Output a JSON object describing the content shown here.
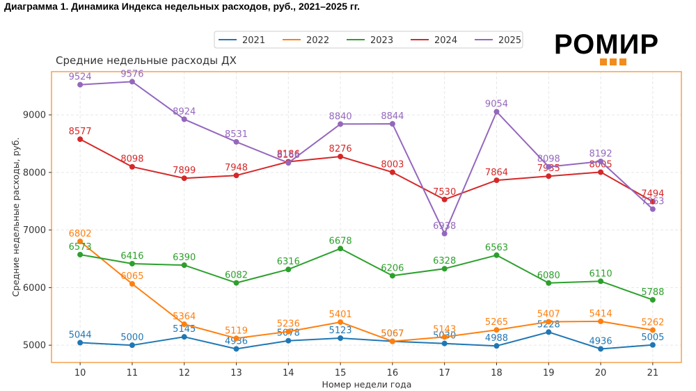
{
  "page": {
    "heading": "Диаграмма 1. Динамика Индекса недельных расходов, руб., 2021–2025 гг.",
    "logo_text": "РОМИР"
  },
  "colors": {
    "frame": "#f5a04a",
    "grid": "#e6e6e6",
    "series": [
      "#1f77b4",
      "#ff7f0e",
      "#2ca02c",
      "#d62728",
      "#9467bd"
    ]
  },
  "chart_data": {
    "type": "line",
    "title": "Средние недельные расходы ДХ",
    "xlabel": "Номер недели года",
    "ylabel": "Средние недельные расходы, руб.",
    "x": [
      10,
      11,
      12,
      13,
      14,
      15,
      16,
      17,
      18,
      19,
      20,
      21
    ],
    "xlim": [
      9.45,
      21.55
    ],
    "ylim": [
      4700,
      9750
    ],
    "yticks": [
      5000,
      6000,
      7000,
      8000,
      9000
    ],
    "grid": true,
    "legend_position": "top-center",
    "series": [
      {
        "name": "2021",
        "values": [
          5044,
          5000,
          5145,
          4936,
          5078,
          5123,
          5067,
          5030,
          4988,
          5228,
          4936,
          5005
        ]
      },
      {
        "name": "2022",
        "values": [
          6802,
          6065,
          5364,
          5119,
          5236,
          5401,
          5067,
          5143,
          5265,
          5407,
          5414,
          5262
        ]
      },
      {
        "name": "2023",
        "values": [
          6573,
          6416,
          6390,
          6082,
          6316,
          6678,
          6206,
          6328,
          6563,
          6080,
          6110,
          5788
        ]
      },
      {
        "name": "2024",
        "values": [
          8577,
          8098,
          7899,
          7948,
          8186,
          8276,
          8003,
          7530,
          7864,
          7935,
          8005,
          7494
        ]
      },
      {
        "name": "2025",
        "values": [
          9524,
          9576,
          8924,
          8531,
          8166,
          8840,
          8844,
          6938,
          9054,
          8098,
          8192,
          7363
        ]
      }
    ]
  }
}
